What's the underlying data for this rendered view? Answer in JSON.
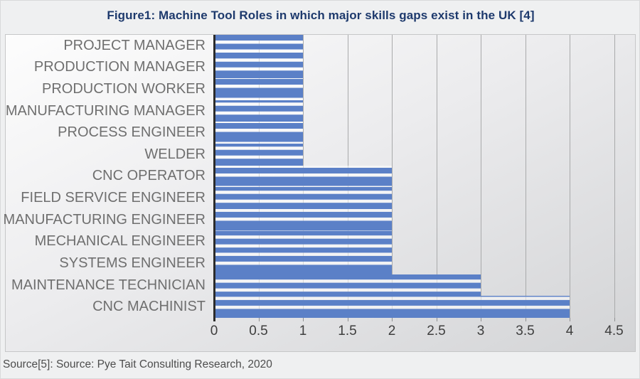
{
  "title": "Figure1: Machine Tool Roles in which major skills gaps exist in the UK [4]",
  "source_note": "Source[5]: Source: Pye Tait Consulting Research, 2020",
  "colors": {
    "title_navy": "#1e3a6d",
    "bar_blue": "#5b80c7",
    "category_label_gray": "#6f6f6f",
    "axis_label_gray": "#3e3e3e",
    "gridline_gray": "#a9aaab",
    "axis_line_dark": "#2b2b2b",
    "page_background": "#eff0f1"
  },
  "chart_data": {
    "type": "bar",
    "orientation": "horizontal",
    "bar_fill_style": "horizontal-striped",
    "title": "Figure1: Machine Tool Roles in which major skills gaps exist in the UK [4]",
    "xlabel": "",
    "ylabel": "",
    "grid": true,
    "legend": "none",
    "xlim": [
      0,
      4.5
    ],
    "x_tick_labels": [
      "0",
      "0.5",
      "1",
      "1.5",
      "2",
      "2.5",
      "3",
      "3.5",
      "4",
      "4.5"
    ],
    "x_tick_values": [
      0,
      0.5,
      1,
      1.5,
      2,
      2.5,
      3,
      3.5,
      4,
      4.5
    ],
    "categories": [
      "PROJECT MANAGER",
      "PRODUCTION MANAGER",
      "PRODUCTION WORKER",
      "MANUFACTURING MANAGER",
      "PROCESS ENGINEER",
      "WELDER",
      "CNC OPERATOR",
      "FIELD SERVICE ENGINEER",
      "MANUFACTURING ENGINEER",
      "MECHANICAL ENGINEER",
      "SYSTEMS ENGINEER",
      "MAINTENANCE TECHNICIAN",
      "CNC MACHINIST"
    ],
    "values": [
      1,
      1,
      1,
      1,
      1,
      1,
      2,
      2,
      2,
      2,
      2,
      3,
      4
    ]
  }
}
